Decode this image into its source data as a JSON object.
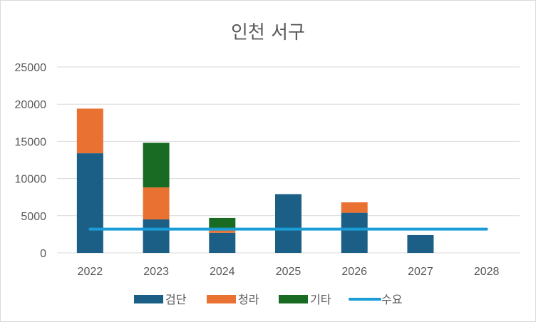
{
  "chart_data": {
    "type": "bar",
    "stacked": true,
    "title": "인천 서구",
    "categories": [
      "2022",
      "2023",
      "2024",
      "2025",
      "2026",
      "2027",
      "2028"
    ],
    "series": [
      {
        "name": "검단",
        "type": "bar",
        "color": "#1b5f86",
        "values": [
          13400,
          4500,
          2700,
          7900,
          5400,
          2400,
          0
        ]
      },
      {
        "name": "청라",
        "type": "bar",
        "color": "#e97132",
        "values": [
          6000,
          4300,
          300,
          0,
          1400,
          0,
          0
        ]
      },
      {
        "name": "기타",
        "type": "bar",
        "color": "#196b24",
        "values": [
          0,
          6000,
          1700,
          0,
          0,
          0,
          0
        ]
      },
      {
        "name": "수요",
        "type": "line",
        "color": "#1a9dd6",
        "values": [
          3200,
          3200,
          3200,
          3200,
          3200,
          3200,
          3200
        ]
      }
    ],
    "ylim": [
      0,
      25000
    ],
    "yticks": [
      0,
      5000,
      10000,
      15000,
      20000,
      25000
    ],
    "grid": true,
    "legend": "bottom",
    "xlabel": "",
    "ylabel": ""
  }
}
